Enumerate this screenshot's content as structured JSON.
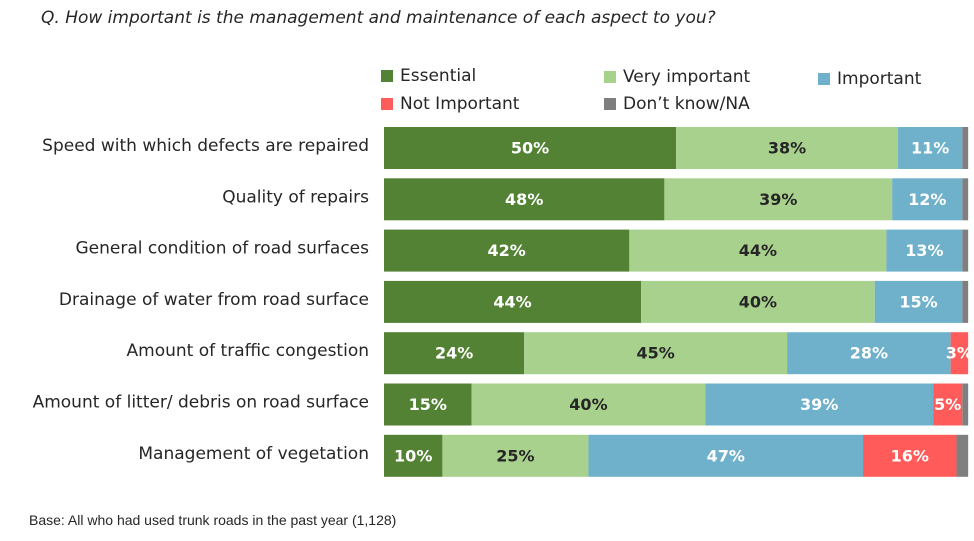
{
  "question": "Q. How important is the management and maintenance of each aspect to you?",
  "base": "Base: All who had used trunk roads in the past year (1,128)",
  "chart_data": {
    "type": "bar",
    "orientation": "horizontal",
    "stacked": true,
    "title": "Q. How important is the management and maintenance of each aspect to you?",
    "xlabel": "",
    "ylabel": "",
    "xlim": [
      0,
      100
    ],
    "legend_position": "top",
    "categories": [
      "Speed with which defects are repaired",
      "Quality of repairs",
      "General condition of road surfaces",
      "Drainage of water from road surface",
      "Amount of traffic congestion",
      "Amount of litter/ debris on road surface",
      "Management of vegetation"
    ],
    "series": [
      {
        "name": "Essential",
        "color": "#548235",
        "label_color": "#ffffff",
        "values": [
          50,
          48,
          42,
          44,
          24,
          15,
          10
        ]
      },
      {
        "name": "Very important",
        "color": "#a9d18e",
        "label_color": "#262626",
        "values": [
          38,
          39,
          44,
          40,
          45,
          40,
          25
        ]
      },
      {
        "name": "Important",
        "color": "#6fb0ca",
        "label_color": "#ffffff",
        "values": [
          11,
          12,
          13,
          15,
          28,
          39,
          47
        ]
      },
      {
        "name": "Not Important",
        "color": "#ff5b5b",
        "label_color": "#ffffff",
        "values": [
          0,
          0,
          0,
          0,
          3,
          5,
          16
        ]
      },
      {
        "name": "Don’t know/NA",
        "color": "#7f7f7f",
        "label_color": "#ffffff",
        "values": [
          1,
          1,
          1,
          1,
          0,
          1,
          2
        ]
      }
    ],
    "labels": [
      [
        "50%",
        "38%",
        "11%",
        "",
        ""
      ],
      [
        "48%",
        "39%",
        "12%",
        "",
        ""
      ],
      [
        "42%",
        "44%",
        "13%",
        "",
        ""
      ],
      [
        "44%",
        "40%",
        "15%",
        "",
        ""
      ],
      [
        "24%",
        "45%",
        "28%",
        "3%",
        ""
      ],
      [
        "15%",
        "40%",
        "39%",
        "5%",
        ""
      ],
      [
        "10%",
        "25%",
        "47%",
        "16%",
        ""
      ]
    ]
  }
}
